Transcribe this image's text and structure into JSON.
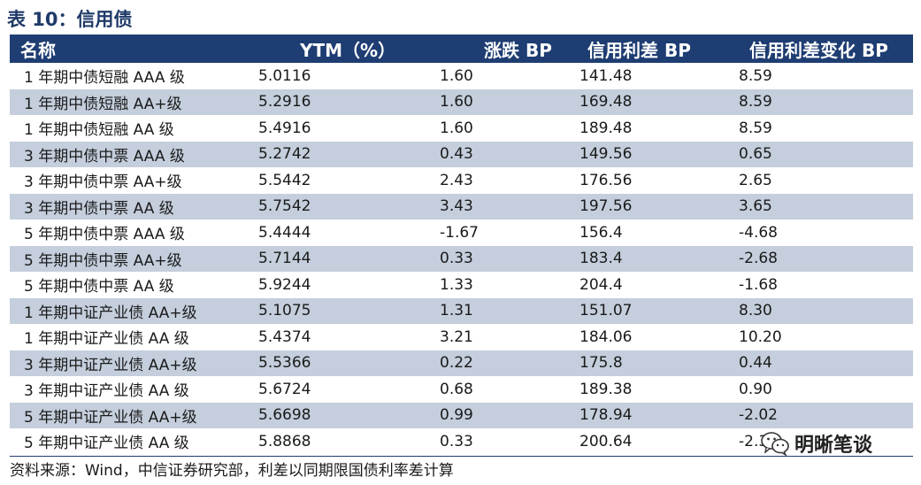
{
  "title": "表 10：信用债",
  "table": {
    "headers": [
      "名称",
      "YTM（%）",
      "涨跌 BP",
      "信用利差 BP",
      "信用利差变化 BP"
    ],
    "rows": [
      [
        "1 年期中债短融 AAA 级",
        "5.0116",
        "1.60",
        "141.48",
        "8.59"
      ],
      [
        "1 年期中债短融 AA+级",
        "5.2916",
        "1.60",
        "169.48",
        "8.59"
      ],
      [
        "1 年期中债短融 AA 级",
        "5.4916",
        "1.60",
        "189.48",
        "8.59"
      ],
      [
        "3 年期中债中票 AAA 级",
        "5.2742",
        "0.43",
        "149.56",
        "0.65"
      ],
      [
        "3 年期中债中票 AA+级",
        "5.5442",
        "2.43",
        "176.56",
        "2.65"
      ],
      [
        "3 年期中债中票 AA 级",
        "5.7542",
        "3.43",
        "197.56",
        "3.65"
      ],
      [
        "5 年期中债中票 AAA 级",
        "5.4444",
        "-1.67",
        "156.4",
        "-4.68"
      ],
      [
        "5 年期中债中票 AA+级",
        "5.7144",
        "0.33",
        "183.4",
        "-2.68"
      ],
      [
        "5 年期中债中票 AA 级",
        "5.9244",
        "1.33",
        "204.4",
        "-1.68"
      ],
      [
        "1 年期中证产业债 AA+级",
        "5.1075",
        "1.31",
        "151.07",
        "8.30"
      ],
      [
        "1 年期中证产业债 AA 级",
        "5.4374",
        "3.21",
        "184.06",
        "10.20"
      ],
      [
        "3 年期中证产业债 AA+级",
        "5.5366",
        "0.22",
        "175.8",
        "0.44"
      ],
      [
        "3 年期中证产业债 AA 级",
        "5.6724",
        "0.68",
        "189.38",
        "0.90"
      ],
      [
        "5 年期中证产业债 AA+级",
        "5.6698",
        "0.99",
        "178.94",
        "-2.02"
      ],
      [
        "5 年期中证产业债 AA 级",
        "5.8868",
        "0.33",
        "200.64",
        "-2.32"
      ]
    ]
  },
  "source": "资料来源：Wind，中信证券研究部，利差以同期限国债利率差计算",
  "watermark": {
    "text": "明晰笔谈",
    "icon": "wechat-icon"
  },
  "colors": {
    "header_bg": "#1e3d72",
    "stripe_bg": "#c4cedc",
    "title_color": "#1f3a68"
  }
}
